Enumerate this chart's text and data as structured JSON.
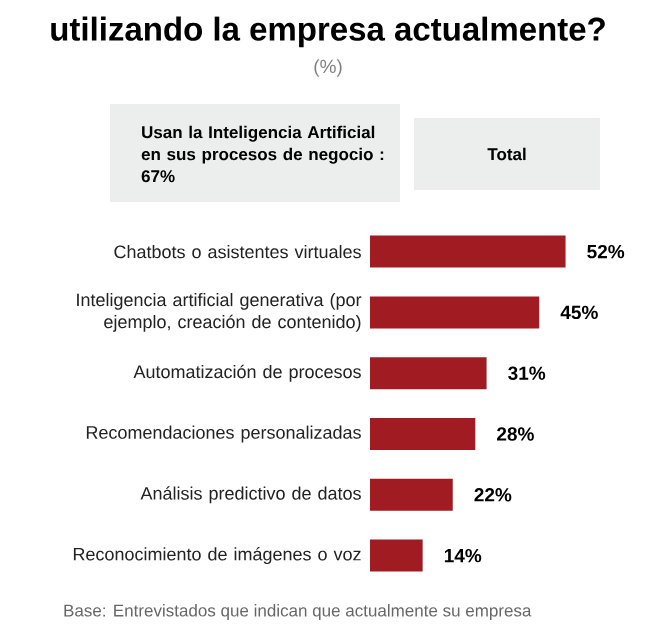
{
  "chart_data": {
    "type": "bar",
    "orientation": "horizontal",
    "title": "utilizando la empresa actualmente?",
    "subtitle": "(%)",
    "categories": [
      "Chatbots o asistentes virtuales",
      "Inteligencia artificial generativa (por ejemplo, creación de contenido)",
      "Automatización de procesos",
      "Recomendaciones personalizadas",
      "Análisis predictivo de datos",
      "Reconocimiento de imágenes o voz"
    ],
    "values": [
      52,
      45,
      31,
      28,
      22,
      14
    ],
    "value_labels": [
      "52%",
      "45%",
      "31%",
      "28%",
      "22%",
      "14%"
    ],
    "color": "#a01c22",
    "annotations": [
      "Usan la Inteligencia Artificial en sus procesos de negocio : 67%",
      "Total",
      "Base: Entrevistados que indican que actualmente su empresa"
    ]
  }
}
